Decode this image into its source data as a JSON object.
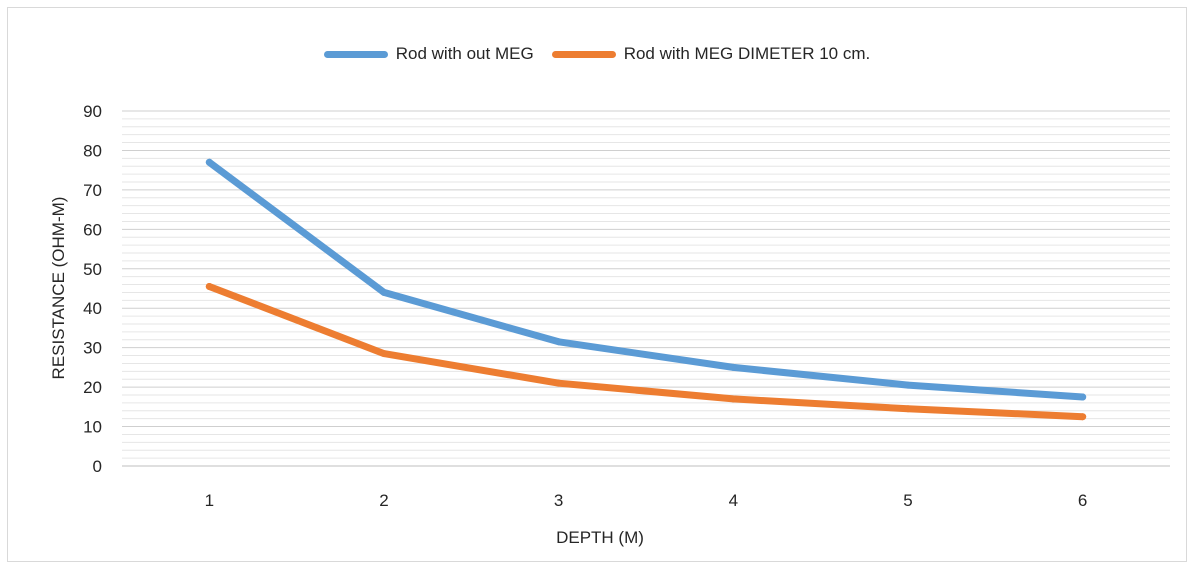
{
  "chart_data": {
    "type": "line",
    "title": "",
    "xlabel": "DEPTH (M)",
    "ylabel": "RESISTANCE (OHM-M)",
    "categories": [
      "1",
      "2",
      "3",
      "4",
      "5",
      "6"
    ],
    "ylim": [
      0,
      90
    ],
    "yticks": [
      "0",
      "10",
      "20",
      "30",
      "40",
      "50",
      "60",
      "70",
      "80",
      "90"
    ],
    "grid": true,
    "legend_position": "top",
    "series": [
      {
        "name": "Rod with out MEG",
        "color": "#5b9bd5",
        "values": [
          77,
          44,
          31.5,
          25,
          20.5,
          17.5
        ]
      },
      {
        "name": "Rod with MEG DIMETER 10 cm.",
        "color": "#ed7d31",
        "values": [
          45.5,
          28.5,
          21,
          17,
          14.5,
          12.5
        ]
      }
    ]
  }
}
